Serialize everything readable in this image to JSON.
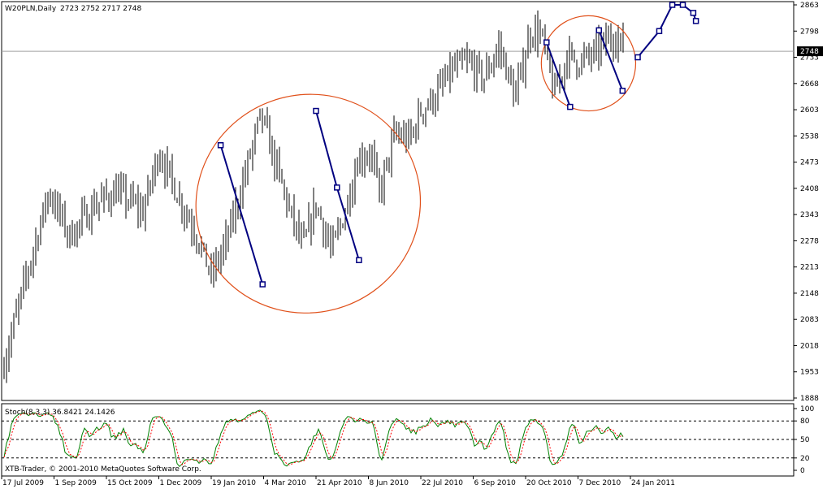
{
  "header": {
    "symbol_label": "W20PLN,Daily",
    "ohlc_label": "2723 2752 2717 2748"
  },
  "price_panel": {
    "y_ticks": [
      1888,
      1953,
      2018,
      2083,
      2148,
      2213,
      2278,
      2343,
      2408,
      2473,
      2538,
      2603,
      2668,
      2733,
      2798,
      2863
    ],
    "y_range": [
      1888,
      2863
    ],
    "current_price_label": "2748",
    "current_price": 2748
  },
  "stoch_panel": {
    "label": "Stoch(8,3,3) 36.8421 24.1426",
    "y_ticks": [
      "100",
      "80",
      "50",
      "20",
      "0"
    ],
    "levels": [
      80,
      50,
      20
    ],
    "main_color": "#008000",
    "signal_color": "#ff0000"
  },
  "x_ticks": [
    "17 Jul 2009",
    "1 Sep 2009",
    "15 Oct 2009",
    "1 Dec 2009",
    "19 Jan 2010",
    "4 Mar 2010",
    "21 Apr 2010",
    "8 Jun 2010",
    "22 Jul 2010",
    "6 Sep 2010",
    "20 Oct 2010",
    "7 Dec 2010",
    "24 Jan 2011"
  ],
  "copyright": "XTB-Trader, © 2001-2010 MetaQuotes Software Corp.",
  "colors": {
    "bars": "#000000",
    "wave_line": "#000080",
    "ellipse": "#e0501a",
    "current_price_bg": "#000000",
    "current_price_fg": "#ffffff"
  },
  "chart_data": {
    "type": "ohlc",
    "x_tick_labels": [
      "17 Jul 2009",
      "1 Sep 2009",
      "15 Oct 2009",
      "1 Dec 2009",
      "19 Jan 2010",
      "4 Mar 2010",
      "21 Apr 2010",
      "8 Jun 2010",
      "22 Jul 2010",
      "6 Sep 2010",
      "20 Oct 2010",
      "7 Dec 2010",
      "24 Jan 2011"
    ],
    "ylim": [
      1888,
      2863
    ],
    "price_path_x_tick_index": [
      0,
      0.45,
      0.9,
      1.3,
      1.8,
      2.2,
      2.7,
      3.0,
      3.4,
      3.7,
      4.0,
      4.3,
      4.7,
      4.95,
      5.2,
      5.5,
      5.75,
      6.0,
      6.3,
      6.55,
      6.8,
      7.05,
      7.2,
      7.5,
      7.8,
      8.0,
      8.3,
      8.6,
      8.9,
      9.2,
      9.5,
      9.8,
      10.1,
      10.3,
      10.55,
      10.8,
      11.0,
      11.3,
      11.45,
      11.7,
      11.9
    ],
    "price_path_close": [
      1953,
      2180,
      2400,
      2290,
      2370,
      2400,
      2350,
      2500,
      2380,
      2300,
      2190,
      2280,
      2470,
      2590,
      2480,
      2350,
      2260,
      2370,
      2250,
      2350,
      2480,
      2500,
      2390,
      2540,
      2530,
      2600,
      2640,
      2700,
      2720,
      2680,
      2760,
      2630,
      2800,
      2790,
      2640,
      2740,
      2720,
      2740,
      2760,
      2790,
      2748
    ],
    "wave_lines": [
      {
        "points": [
          [
            4.18,
            2515
          ],
          [
            4.98,
            2170
          ]
        ]
      },
      {
        "points": [
          [
            6.0,
            2600
          ],
          [
            6.4,
            2410
          ],
          [
            6.82,
            2230
          ]
        ]
      },
      {
        "points": [
          [
            10.4,
            2770
          ],
          [
            10.85,
            2610
          ]
        ]
      },
      {
        "points": [
          [
            11.4,
            2800
          ],
          [
            11.85,
            2650
          ]
        ]
      }
    ],
    "projection": {
      "x_tick_index": [
        12.14,
        12.55,
        12.8,
        13.0,
        13.2,
        13.25
      ],
      "y": [
        2733,
        2798,
        2863,
        2863,
        2843,
        2823
      ]
    },
    "ellipses": [
      {
        "center": [
          5.85,
          2370
        ],
        "radii_ticks_price": [
          2.15,
          270
        ],
        "rotation_deg": -20
      },
      {
        "center": [
          11.2,
          2718
        ],
        "radii_ticks_price": [
          0.9,
          118
        ],
        "rotation_deg": -10
      }
    ],
    "stochastic": {
      "name": "Stoch(8,3,3)",
      "main_last": 36.8421,
      "signal_last": 24.1426,
      "levels": [
        80,
        50,
        20
      ],
      "ylim": [
        0,
        100
      ]
    }
  }
}
